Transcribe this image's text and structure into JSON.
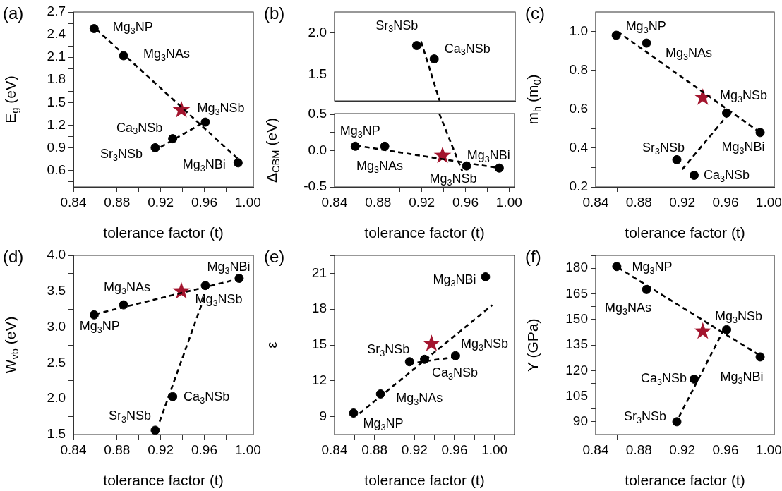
{
  "chart_data": [
    {
      "type": "scatter",
      "title": "(a)",
      "xlabel": "tolerance factor (t)",
      "ylabel": "E$_{g}$ (eV)",
      "xlim": [
        0.84,
        1.005
      ],
      "xticks": [
        0.84,
        {
          "value": 0.86,
          "label": null
        },
        0.88,
        {
          "value": 0.9,
          "label": null
        },
        0.92,
        {
          "value": 0.94,
          "label": null
        },
        0.96,
        {
          "value": 0.98,
          "label": null
        },
        {
          "value": 1,
          "label": "1.00"
        }
      ],
      "ylim": [
        0.38,
        2.7
      ],
      "yticks": [
        {
          "value": 0.45,
          "label": null
        },
        0.6,
        {
          "value": 0.75,
          "label": null
        },
        0.9,
        {
          "value": 1.05,
          "label": null
        },
        1.2,
        {
          "value": 1.35,
          "label": null
        },
        1.5,
        {
          "value": 1.65,
          "label": null
        },
        1.8,
        {
          "value": 1.95,
          "label": null
        },
        2.1,
        {
          "value": 2.25,
          "label": null
        },
        2.4,
        {
          "value": 2.55,
          "label": null
        },
        2.7
      ],
      "series": [
        {
          "type": "line",
          "color": "#000000",
          "line_style": "dashed",
          "marker": "none",
          "x": [
            0.861,
            0.991
          ],
          "values": [
            2.47,
            0.75
          ]
        },
        {
          "type": "line",
          "color": "#000000",
          "line_style": "dashed",
          "marker": "none",
          "x": [
            0.92,
            0.96
          ],
          "values": [
            0.91,
            1.24
          ]
        },
        {
          "type": "scatter",
          "color": "#000000",
          "marker": "circle",
          "x": [
            0.859,
            0.886,
            0.915,
            0.931,
            0.961,
            0.991
          ],
          "values": [
            2.48,
            2.12,
            0.9,
            1.02,
            1.24,
            0.7
          ]
        },
        {
          "type": "scatter",
          "color": "#a3152e",
          "marker": "star",
          "x": [
            0.939
          ],
          "values": [
            1.4
          ]
        }
      ],
      "annotations": [
        {
          "text": "Mg$_{3}$NP",
          "x": 0.859,
          "y": 2.48
        },
        {
          "text": "Mg$_{3}$NAs",
          "x": 0.886,
          "y": 2.12
        },
        {
          "text": "Sr$_{3}$NSb",
          "x": 0.915,
          "y": 0.9
        },
        {
          "text": "Ca$_{3}$NSb",
          "x": 0.931,
          "y": 1.02
        },
        {
          "text": "Mg$_{3}$NSb",
          "x": 0.961,
          "y": 1.24
        },
        {
          "text": "Mg$_{3}$NBi",
          "x": 0.991,
          "y": 0.7
        }
      ]
    },
    {
      "type": "scatter",
      "title": "(b)",
      "tick_labels": "y",
      "xlim": [
        0.84,
        1.005
      ],
      "ylim": [
        1.19,
        2.25
      ],
      "yticks": [
        1.5,
        {
          "value": 1.75,
          "label": null
        },
        {
          "value": 2,
          "label": "2.0"
        }
      ],
      "series": [
        {
          "type": "line",
          "color": "#000000",
          "line_style": "dashed",
          "marker": "none",
          "x": [
            0.919,
            0.936
          ],
          "values": [
            1.9,
            1.19
          ]
        },
        {
          "type": "scatter",
          "color": "#000000",
          "marker": "circle",
          "x": [
            0.915,
            0.931
          ],
          "values": [
            1.85,
            1.69
          ]
        }
      ],
      "annotations": [
        {
          "text": "Sr$_{3}$NSb",
          "x": 0.915,
          "y": 1.85
        },
        {
          "text": "Ca$_{3}$NSb",
          "x": 0.931,
          "y": 1.69
        }
      ]
    },
    {
      "type": "scatter",
      "xlabel": "tolerance factor (t)",
      "ylabel": "Δ$_{CBM}$ (eV)",
      "xlim": [
        0.84,
        1.005
      ],
      "xticks": [
        0.84,
        {
          "value": 0.86,
          "label": null
        },
        0.88,
        {
          "value": 0.9,
          "label": null
        },
        0.92,
        {
          "value": 0.94,
          "label": null
        },
        0.96,
        {
          "value": 0.98,
          "label": null
        },
        {
          "value": 1,
          "label": "1.00"
        }
      ],
      "ylim": [
        -0.5,
        0.51
      ],
      "yticks": [
        -0.5,
        {
          "value": -0.25,
          "label": null
        },
        {
          "value": 0,
          "label": "0.0"
        },
        {
          "value": 0.25,
          "label": null
        },
        0.5
      ],
      "series": [
        {
          "type": "line",
          "color": "#000000",
          "line_style": "dashed",
          "marker": "none",
          "x": [
            0.936,
            0.957
          ],
          "values": [
            0.51,
            -0.28
          ]
        },
        {
          "type": "line",
          "color": "#000000",
          "line_style": "dashed",
          "marker": "none",
          "x": [
            0.86,
            0.991
          ],
          "values": [
            0.07,
            -0.24
          ]
        },
        {
          "type": "scatter",
          "color": "#000000",
          "marker": "circle",
          "x": [
            0.859,
            0.886,
            0.961,
            0.991
          ],
          "values": [
            0.06,
            0.06,
            -0.21,
            -0.24
          ]
        },
        {
          "type": "scatter",
          "color": "#a3152e",
          "marker": "star",
          "x": [
            0.939
          ],
          "values": [
            -0.07
          ]
        }
      ],
      "annotations": [
        {
          "text": "Mg$_{3}$NP",
          "x": 0.859,
          "y": 0.06
        },
        {
          "text": "Mg$_{3}$NAs",
          "x": 0.886,
          "y": 0.06
        },
        {
          "text": "Mg$_{3}$NSb",
          "x": 0.961,
          "y": -0.21
        },
        {
          "text": "Mg$_{3}$NBi",
          "x": 0.991,
          "y": -0.24
        }
      ]
    },
    {
      "type": "scatter",
      "title": "(c)",
      "xlabel": "tolerance factor (t)",
      "ylabel": "m$_{h}$ (m$_{0}$)",
      "xlim": [
        0.84,
        1.005
      ],
      "xticks": [
        0.84,
        {
          "value": 0.86,
          "label": null
        },
        0.88,
        {
          "value": 0.9,
          "label": null
        },
        0.92,
        {
          "value": 0.94,
          "label": null
        },
        0.96,
        {
          "value": 0.98,
          "label": null
        },
        {
          "value": 1,
          "label": "1.00"
        }
      ],
      "ylim": [
        0.2,
        1.1
      ],
      "yticks": [
        0.2,
        {
          "value": 0.3,
          "label": null
        },
        0.4,
        {
          "value": 0.5,
          "label": null
        },
        0.6,
        {
          "value": 0.7,
          "label": null
        },
        0.8,
        {
          "value": 0.9,
          "label": null
        },
        {
          "value": 1,
          "label": "1.0"
        }
      ],
      "series": [
        {
          "type": "line",
          "color": "#000000",
          "line_style": "dashed",
          "marker": "none",
          "x": [
            0.86,
            0.992
          ],
          "values": [
            1.0,
            0.48
          ]
        },
        {
          "type": "line",
          "color": "#000000",
          "line_style": "dashed",
          "marker": "none",
          "x": [
            0.92,
            0.962
          ],
          "values": [
            0.29,
            0.57
          ]
        },
        {
          "type": "scatter",
          "color": "#000000",
          "marker": "circle",
          "x": [
            0.859,
            0.887,
            0.915,
            0.931,
            0.961,
            0.992
          ],
          "values": [
            0.98,
            0.94,
            0.34,
            0.26,
            0.58,
            0.48
          ]
        },
        {
          "type": "scatter",
          "color": "#a3152e",
          "marker": "star",
          "x": [
            0.939
          ],
          "values": [
            0.66
          ]
        }
      ],
      "annotations": [
        {
          "text": "Mg$_{3}$NP",
          "x": 0.859,
          "y": 0.98
        },
        {
          "text": "Mg$_{3}$NAs",
          "x": 0.887,
          "y": 0.94
        },
        {
          "text": "Sr$_{3}$NSb",
          "x": 0.915,
          "y": 0.34
        },
        {
          "text": "Ca$_{3}$NSb",
          "x": 0.931,
          "y": 0.26
        },
        {
          "text": "Mg$_{3}$NSb",
          "x": 0.961,
          "y": 0.58
        },
        {
          "text": "Mg$_{3}$NBi",
          "x": 0.992,
          "y": 0.48
        }
      ]
    },
    {
      "type": "scatter",
      "title": "(d)",
      "xlabel": "tolerance factor (t)",
      "ylabel": "W$_{vb}$ (eV)",
      "xlim": [
        0.84,
        1.005
      ],
      "xticks": [
        0.84,
        {
          "value": 0.86,
          "label": null
        },
        0.88,
        {
          "value": 0.9,
          "label": null
        },
        0.92,
        {
          "value": 0.94,
          "label": null
        },
        0.96,
        {
          "value": 0.98,
          "label": null
        },
        {
          "value": 1,
          "label": "1.00"
        }
      ],
      "ylim": [
        1.5,
        4.0
      ],
      "yticks": [
        1.5,
        {
          "value": 1.75,
          "label": null
        },
        {
          "value": 2,
          "label": "2.0"
        },
        {
          "value": 2.25,
          "label": null
        },
        2.5,
        {
          "value": 2.75,
          "label": null
        },
        {
          "value": 3,
          "label": "3.0"
        },
        {
          "value": 3.25,
          "label": null
        },
        3.5,
        {
          "value": 3.75,
          "label": null
        },
        {
          "value": 4,
          "label": "4.0"
        }
      ],
      "series": [
        {
          "type": "line",
          "color": "#000000",
          "line_style": "dashed",
          "marker": "none",
          "x": [
            0.86,
            0.991
          ],
          "values": [
            3.18,
            3.67
          ]
        },
        {
          "type": "line",
          "color": "#000000",
          "line_style": "dashed",
          "marker": "none",
          "x": [
            0.919,
            0.9605
          ],
          "values": [
            1.68,
            3.44
          ]
        },
        {
          "type": "scatter",
          "color": "#000000",
          "marker": "circle",
          "x": [
            0.859,
            0.886,
            0.915,
            0.931,
            0.961,
            0.992
          ],
          "values": [
            3.17,
            3.31,
            1.56,
            2.03,
            3.58,
            3.68
          ]
        },
        {
          "type": "scatter",
          "color": "#a3152e",
          "marker": "star",
          "x": [
            0.939
          ],
          "values": [
            3.5
          ]
        }
      ],
      "annotations": [
        {
          "text": "Mg$_{3}$NP",
          "x": 0.859,
          "y": 3.17
        },
        {
          "text": "Mg$_{3}$NAs",
          "x": 0.886,
          "y": 3.31
        },
        {
          "text": "Sr$_{3}$NSb",
          "x": 0.915,
          "y": 1.56
        },
        {
          "text": "Ca$_{3}$NSb",
          "x": 0.931,
          "y": 2.03
        },
        {
          "text": "Mg$_{3}$NSb",
          "x": 0.961,
          "y": 3.58
        },
        {
          "text": "Mg$_{3}$NBi",
          "x": 0.992,
          "y": 3.68
        }
      ]
    },
    {
      "type": "scatter",
      "title": "(e)",
      "xlabel": "tolerance factor (t)",
      "ylabel": "ε",
      "xlim": [
        0.84,
        1.02
      ],
      "xticks": [
        0.84,
        {
          "value": 0.86,
          "label": null
        },
        0.88,
        {
          "value": 0.9,
          "label": null
        },
        0.92,
        {
          "value": 0.94,
          "label": null
        },
        0.96,
        {
          "value": 0.98,
          "label": null
        },
        {
          "value": 1,
          "label": "1.00"
        },
        {
          "value": 1.02,
          "label": null
        }
      ],
      "ylim": [
        7.5,
        22.5
      ],
      "yticks": [
        {
          "value": 7.5,
          "label": null
        },
        9,
        {
          "value": 10.5,
          "label": null
        },
        12,
        {
          "value": 13.5,
          "label": null
        },
        15,
        {
          "value": 16.5,
          "label": null
        },
        18,
        {
          "value": 19.5,
          "label": null
        },
        21,
        {
          "value": 22.5,
          "label": null
        }
      ],
      "series": [
        {
          "type": "line",
          "color": "#000000",
          "line_style": "dashed",
          "marker": "none",
          "x": [
            0.865,
            0.9976
          ],
          "values": [
            9.27,
            18.33
          ]
        },
        {
          "type": "line",
          "color": "#000000",
          "line_style": "dashed",
          "marker": "none",
          "x": [
            0.923,
            0.958
          ],
          "values": [
            13.54,
            13.96
          ]
        },
        {
          "type": "scatter",
          "color": "#000000",
          "marker": "circle",
          "x": [
            0.859,
            0.886,
            0.915,
            0.93,
            0.961,
            0.991
          ],
          "values": [
            9.3,
            10.9,
            13.6,
            13.8,
            14.1,
            20.7
          ]
        },
        {
          "type": "scatter",
          "color": "#a3152e",
          "marker": "star",
          "x": [
            0.937
          ],
          "values": [
            15.1
          ]
        }
      ],
      "annotations": [
        {
          "text": "Mg$_{3}$NP",
          "x": 0.859,
          "y": 9.3
        },
        {
          "text": "Mg$_{3}$NAs",
          "x": 0.886,
          "y": 10.9
        },
        {
          "text": "Sr$_{3}$NSb",
          "x": 0.915,
          "y": 13.6
        },
        {
          "text": "Ca$_{3}$NSb",
          "x": 0.93,
          "y": 13.8
        },
        {
          "text": "Mg$_{3}$NSb",
          "x": 0.961,
          "y": 14.1
        },
        {
          "text": "Mg$_{3}$NBi",
          "x": 0.991,
          "y": 20.7
        }
      ]
    },
    {
      "type": "scatter",
      "title": "(f)",
      "xlabel": "tolerance factor (t)",
      "ylabel": "Y (GPa)",
      "xlim": [
        0.84,
        1.005
      ],
      "xticks": [
        0.84,
        {
          "value": 0.86,
          "label": null
        },
        0.88,
        {
          "value": 0.9,
          "label": null
        },
        0.92,
        {
          "value": 0.94,
          "label": null
        },
        0.96,
        {
          "value": 0.98,
          "label": null
        },
        {
          "value": 1,
          "label": "1.00"
        }
      ],
      "ylim": [
        82.5,
        187.5
      ],
      "yticks": [
        {
          "value": 82.5,
          "label": null
        },
        90,
        {
          "value": 97.5,
          "label": null
        },
        105,
        {
          "value": 112.5,
          "label": null
        },
        120,
        {
          "value": 127.5,
          "label": null
        },
        135,
        {
          "value": 142.5,
          "label": null
        },
        150,
        {
          "value": 157.5,
          "label": null
        },
        165,
        {
          "value": 172.5,
          "label": null
        },
        180,
        {
          "value": 187.5,
          "label": null
        }
      ],
      "series": [
        {
          "type": "line",
          "color": "#000000",
          "line_style": "dashed",
          "marker": "none",
          "x": [
            0.8606,
            0.9915
          ],
          "values": [
            180.4,
            128.9
          ]
        },
        {
          "type": "line",
          "color": "#000000",
          "line_style": "dashed",
          "marker": "none",
          "x": [
            0.917,
            0.959
          ],
          "values": [
            92.9,
            144.7
          ]
        },
        {
          "type": "scatter",
          "color": "#000000",
          "marker": "circle",
          "x": [
            0.8595,
            0.887,
            0.915,
            0.931,
            0.961,
            0.992
          ],
          "values": [
            181,
            167.5,
            90,
            115,
            144,
            128
          ]
        },
        {
          "type": "scatter",
          "color": "#a3152e",
          "marker": "star",
          "x": [
            0.939
          ],
          "values": [
            143
          ]
        }
      ],
      "annotations": [
        {
          "text": "Mg$_{3}$NP",
          "x": 0.8595,
          "y": 181
        },
        {
          "text": "Mg$_{3}$NAs",
          "x": 0.887,
          "y": 167.5
        },
        {
          "text": "Sr$_{3}$NSb",
          "x": 0.915,
          "y": 90
        },
        {
          "text": "Ca$_{3}$NSb",
          "x": 0.931,
          "y": 115
        },
        {
          "text": "Mg$_{3}$NSb",
          "x": 0.961,
          "y": 144
        },
        {
          "text": "Mg$_{3}$NBi",
          "x": 0.992,
          "y": 128
        }
      ]
    }
  ]
}
